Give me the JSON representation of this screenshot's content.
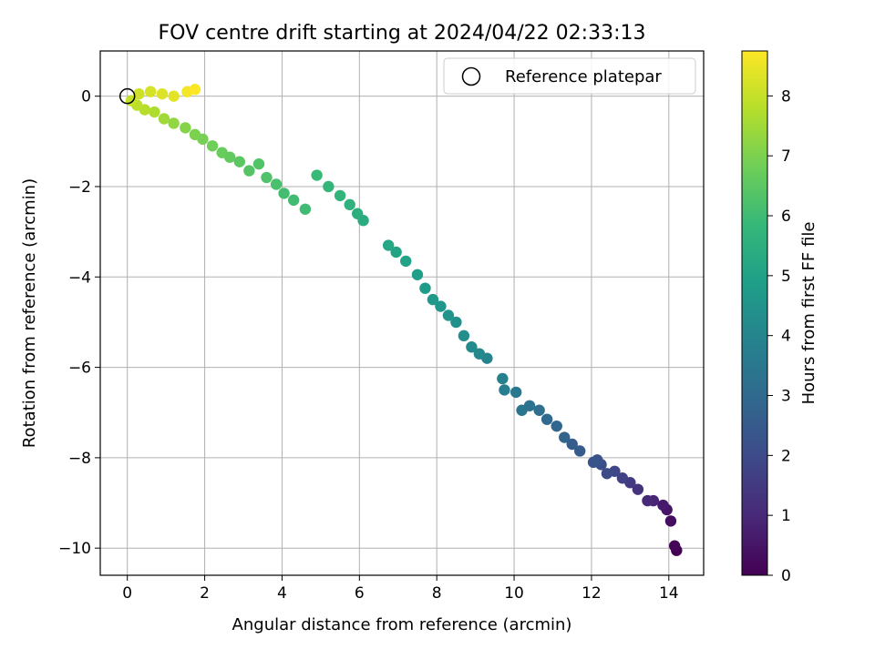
{
  "chart_data": {
    "type": "scatter",
    "title": "FOV centre drift starting at 2024/04/22 02:33:13",
    "xlabel": "Angular distance from reference (arcmin)",
    "ylabel": "Rotation from reference (arcmin)",
    "xlim": [
      -0.7,
      14.9
    ],
    "ylim": [
      -10.6,
      1.0
    ],
    "xticks": [
      0,
      2,
      4,
      6,
      8,
      10,
      12,
      14
    ],
    "yticks": [
      0,
      -2,
      -4,
      -6,
      -8,
      -10
    ],
    "grid": true,
    "legend": {
      "location": "upper right",
      "entries": [
        "Reference platepar"
      ]
    },
    "reference_point": {
      "x": 0,
      "y": 0,
      "label": "Reference platepar"
    },
    "colorbar": {
      "label": "Hours from first FF file",
      "colormap": "viridis",
      "range": [
        0,
        8.75
      ],
      "ticks": [
        0,
        1,
        2,
        3,
        4,
        5,
        6,
        7,
        8
      ]
    },
    "colors": {
      "viridis_stops": [
        "#440154",
        "#482878",
        "#3e4989",
        "#31688e",
        "#26828e",
        "#1f9e89",
        "#35b779",
        "#6ece58",
        "#b5de2b",
        "#fde725"
      ]
    },
    "series": [
      {
        "x": [
          14.2,
          14.15,
          14.05,
          13.95,
          13.85,
          13.6,
          13.45,
          13.2,
          13.0,
          12.8,
          12.6,
          12.4,
          12.25,
          12.15,
          12.05,
          11.7,
          11.5,
          11.3,
          11.1,
          10.85,
          10.65,
          10.4,
          10.2,
          10.05,
          9.75,
          9.7,
          9.3,
          9.1,
          8.9,
          8.7,
          8.5,
          8.3,
          8.1,
          7.9,
          7.7,
          7.5,
          7.2,
          6.95,
          6.75,
          6.1,
          5.95,
          5.75,
          5.5,
          5.2,
          4.9,
          4.6,
          4.3,
          4.05,
          3.85,
          3.6,
          3.4,
          3.15,
          2.9,
          2.65,
          2.45,
          2.2,
          1.95,
          1.75,
          1.5,
          1.2,
          0.95,
          0.7,
          0.45,
          0.25,
          0.1,
          0.3,
          0.6,
          0.9,
          1.2,
          1.55,
          1.75
        ],
        "y": [
          -10.05,
          -9.95,
          -9.4,
          -9.15,
          -9.05,
          -8.95,
          -8.95,
          -8.7,
          -8.55,
          -8.45,
          -8.3,
          -8.35,
          -8.15,
          -8.05,
          -8.1,
          -7.85,
          -7.7,
          -7.55,
          -7.3,
          -7.15,
          -6.95,
          -6.85,
          -6.95,
          -6.55,
          -6.5,
          -6.25,
          -5.8,
          -5.7,
          -5.55,
          -5.3,
          -5.0,
          -4.85,
          -4.65,
          -4.5,
          -4.25,
          -3.95,
          -3.65,
          -3.45,
          -3.3,
          -2.75,
          -2.6,
          -2.4,
          -2.2,
          -2.0,
          -1.75,
          -2.5,
          -2.3,
          -2.15,
          -1.95,
          -1.8,
          -1.5,
          -1.65,
          -1.45,
          -1.35,
          -1.25,
          -1.1,
          -0.95,
          -0.85,
          -0.7,
          -0.6,
          -0.5,
          -0.35,
          -0.3,
          -0.2,
          -0.1,
          0.05,
          0.1,
          0.05,
          0.0,
          0.1,
          0.15
        ],
        "hours": [
          0.0,
          0.1,
          0.3,
          0.5,
          0.6,
          0.9,
          1.0,
          1.3,
          1.5,
          1.7,
          1.9,
          2.0,
          2.1,
          2.2,
          2.3,
          2.5,
          2.6,
          2.8,
          2.9,
          3.0,
          3.2,
          3.3,
          3.4,
          3.5,
          3.7,
          3.8,
          4.0,
          4.1,
          4.2,
          4.3,
          4.4,
          4.5,
          4.6,
          4.7,
          4.8,
          4.9,
          5.0,
          5.1,
          5.2,
          5.4,
          5.5,
          5.6,
          5.7,
          5.8,
          5.9,
          6.0,
          6.05,
          6.1,
          6.2,
          6.3,
          6.35,
          6.4,
          6.5,
          6.6,
          6.7,
          6.8,
          6.9,
          7.0,
          7.1,
          7.3,
          7.5,
          7.7,
          7.8,
          7.9,
          8.0,
          8.1,
          8.2,
          8.3,
          8.4,
          8.6,
          8.75
        ]
      }
    ]
  }
}
